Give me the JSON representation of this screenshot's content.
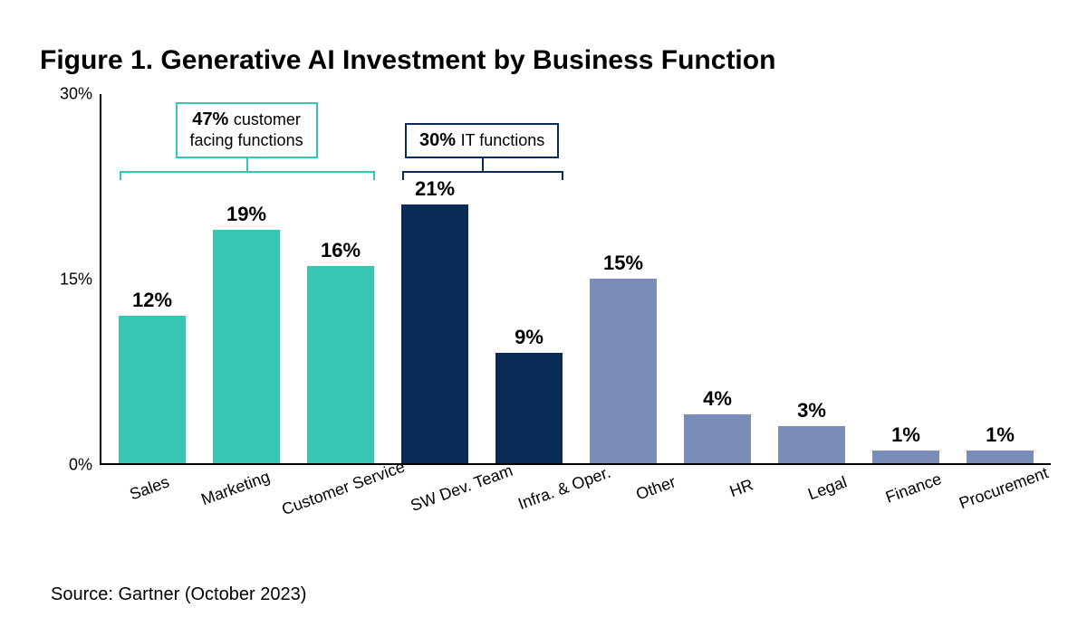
{
  "title": "Figure 1. Generative AI Investment by Business Function",
  "source": "Source: Gartner (October 2023)",
  "chart": {
    "type": "bar",
    "background_color": "#ffffff",
    "axis_color": "#000000",
    "y_axis": {
      "min": 0,
      "max": 30,
      "ticks": [
        0,
        15,
        30
      ],
      "tick_labels": [
        "0%",
        "15%",
        "30%"
      ],
      "tick_fontsize": 18
    },
    "value_label_fontsize": 22,
    "value_label_weight": "700",
    "x_label_fontsize": 18,
    "x_label_rotation_deg": -20,
    "bar_width_pct": 72,
    "colors": {
      "customer_facing": "#35c7b1",
      "it_functions": "#0b2b57",
      "other": "#7a8db8"
    },
    "bars": [
      {
        "category": "Sales",
        "value": 12,
        "label": "12%",
        "color_key": "customer_facing"
      },
      {
        "category": "Marketing",
        "value": 19,
        "label": "19%",
        "color_key": "customer_facing"
      },
      {
        "category": "Customer Service",
        "value": 16,
        "label": "16%",
        "color_key": "customer_facing"
      },
      {
        "category": "SW Dev. Team",
        "value": 21,
        "label": "21%",
        "color_key": "it_functions"
      },
      {
        "category": "Infra. & Oper.",
        "value": 9,
        "label": "9%",
        "color_key": "it_functions"
      },
      {
        "category": "Other",
        "value": 15,
        "label": "15%",
        "color_key": "other"
      },
      {
        "category": "HR",
        "value": 4,
        "label": "4%",
        "color_key": "other"
      },
      {
        "category": "Legal",
        "value": 3,
        "label": "3%",
        "color_key": "other"
      },
      {
        "category": "Finance",
        "value": 1,
        "label": "1%",
        "color_key": "other"
      },
      {
        "category": "Procurement",
        "value": 1,
        "label": "1%",
        "color_key": "other"
      }
    ],
    "groups": [
      {
        "label_bold": "47%",
        "label_rest": "customer facing functions",
        "bar_start_index": 0,
        "bar_end_index": 2,
        "border_color": "#35c7b1"
      },
      {
        "label_bold": "30%",
        "label_rest": "IT functions",
        "bar_start_index": 3,
        "bar_end_index": 4,
        "border_color": "#0b2b57"
      }
    ]
  }
}
